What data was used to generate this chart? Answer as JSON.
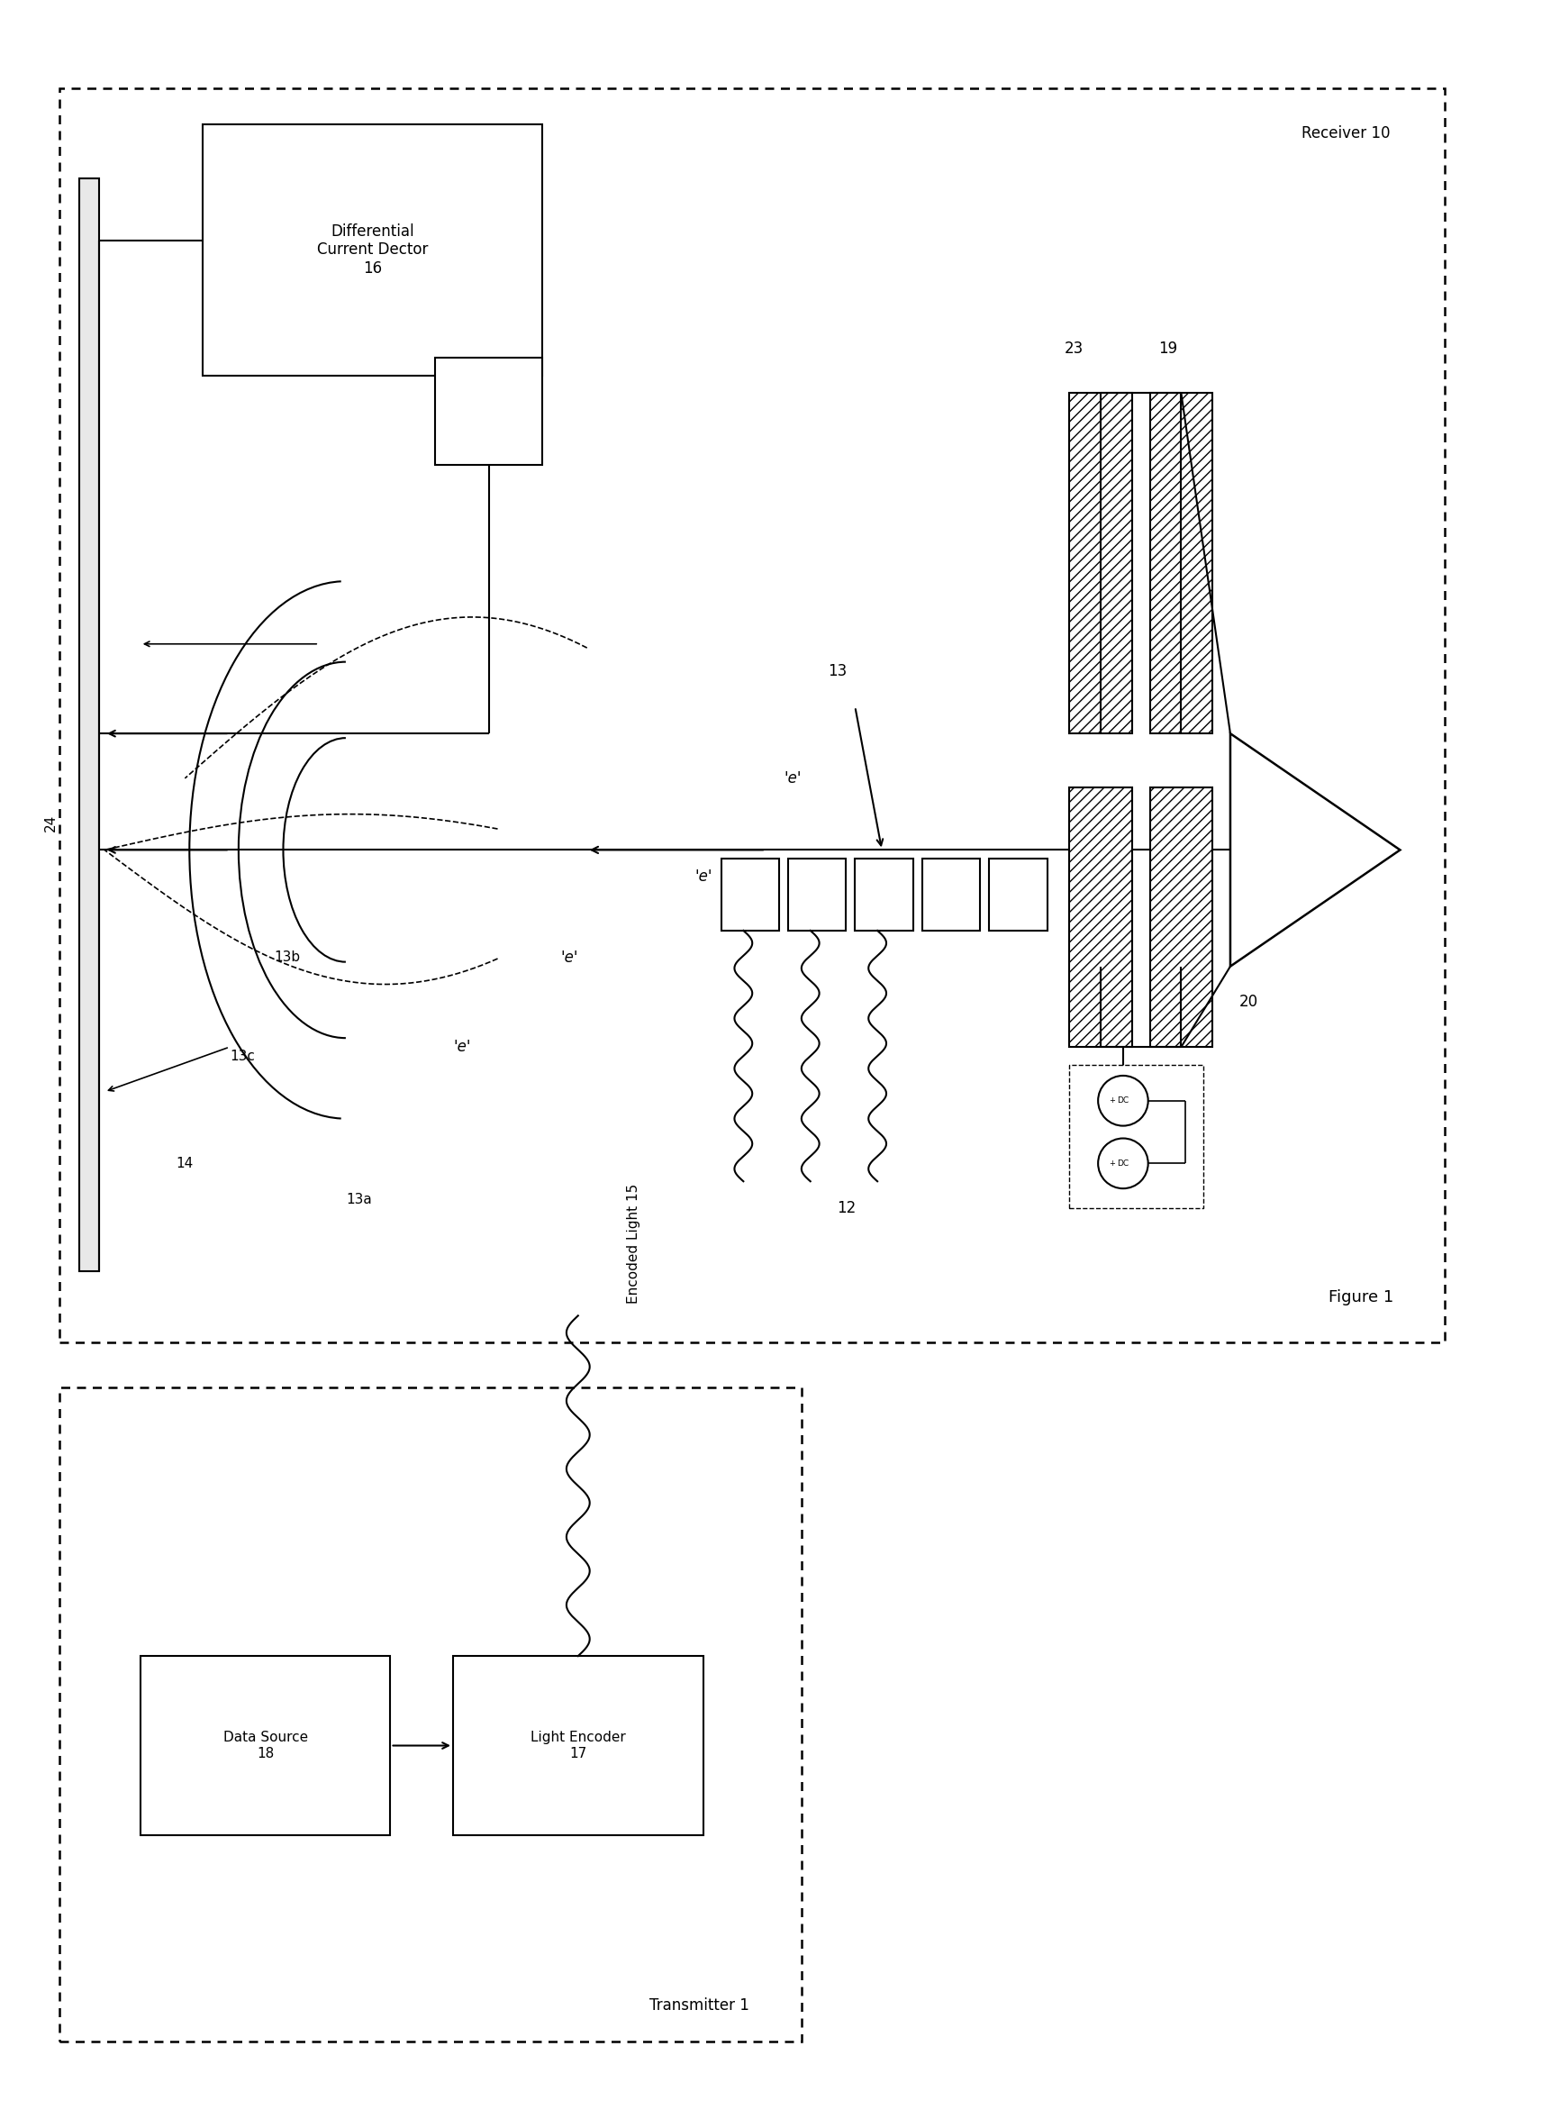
{
  "bg_color": "#ffffff",
  "lc": "#000000",
  "fig_width": 17.32,
  "fig_height": 23.62,
  "receiver_label": "Receiver 10",
  "transmitter_label": "Transmitter 1",
  "encoded_light_label": "Encoded Light 15",
  "diff_detector_label": "Differential\nCurrent Dector\n16",
  "data_source_label": "Data Source\n18",
  "light_encoder_label": "Light Encoder\n17",
  "figure_label": "Figure 1",
  "label_12": "12",
  "label_13": "13",
  "label_13a": "13a",
  "label_13b": "13b",
  "label_13c": "13c",
  "label_14": "14",
  "label_19": "19",
  "label_20": "20",
  "label_23": "23",
  "label_24": "24",
  "label_e": "'e'",
  "label_dc": "DC"
}
